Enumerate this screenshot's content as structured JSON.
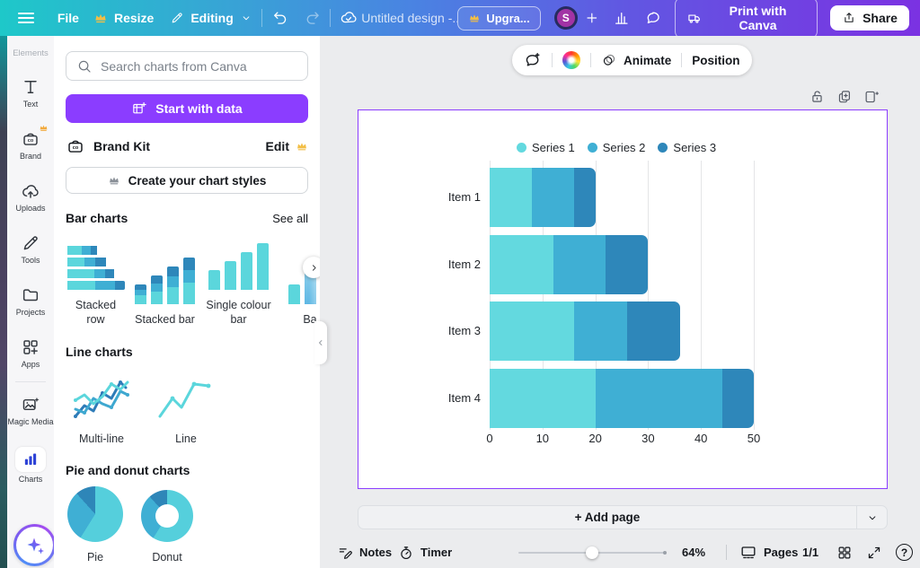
{
  "topbar": {
    "file": "File",
    "resize": "Resize",
    "editing": "Editing",
    "design_title": "Untitled design -...",
    "upgrade_label": "Upgra...",
    "avatar_initial": "S",
    "print_label": "Print with Canva",
    "share_label": "Share"
  },
  "rail": {
    "items": [
      {
        "id": "elements",
        "label": "Elements",
        "icon": "",
        "faded": true
      },
      {
        "id": "text",
        "label": "Text",
        "icon": "textT"
      },
      {
        "id": "brand",
        "label": "Brand",
        "icon": "brandCo",
        "crown": true
      },
      {
        "id": "uploads",
        "label": "Uploads",
        "icon": "cloudUp"
      },
      {
        "id": "tools",
        "label": "Tools",
        "icon": "pencil"
      },
      {
        "id": "projects",
        "label": "Projects",
        "icon": "folderIc"
      },
      {
        "id": "apps",
        "label": "Apps",
        "icon": "appsIc"
      },
      {
        "id": "divider"
      },
      {
        "id": "magic-media",
        "label": "Magic Media",
        "icon": "magicIc"
      },
      {
        "id": "charts",
        "label": "Charts",
        "icon": "chartBarsIc",
        "active": true
      }
    ]
  },
  "panel": {
    "search_placeholder": "Search charts from Canva",
    "start_with_data_label": "Start with data",
    "brand_kit_label": "Brand Kit",
    "edit_label": "Edit",
    "create_styles_label": "Create your chart styles",
    "sections": [
      {
        "title": "Bar charts",
        "see_all": "See all",
        "items": [
          {
            "label": "Stacked row",
            "type": "stacked-row"
          },
          {
            "label": "Stacked bar",
            "type": "stacked-bar"
          },
          {
            "label": "Single colour bar",
            "type": "single-colour-bar"
          },
          {
            "label": "Ba",
            "type": "partial-bar"
          }
        ]
      },
      {
        "title": "Line charts",
        "items": [
          {
            "label": "Multi-line",
            "type": "multi-line"
          },
          {
            "label": "Line",
            "type": "line"
          }
        ]
      },
      {
        "title": "Pie and donut charts",
        "items": [
          {
            "label": "Pie",
            "type": "pie"
          },
          {
            "label": "Donut",
            "type": "donut"
          }
        ]
      }
    ]
  },
  "context_toolbar": {
    "animate_label": "Animate",
    "position_label": "Position"
  },
  "chart_data": {
    "type": "bar",
    "orientation": "horizontal",
    "stacked": true,
    "categories": [
      "Item 1",
      "Item 2",
      "Item 3",
      "Item 4"
    ],
    "series": [
      {
        "name": "Series 1",
        "color": "#63D9DF",
        "values": [
          8,
          12,
          16,
          20
        ]
      },
      {
        "name": "Series 2",
        "color": "#3FAFD4",
        "values": [
          8,
          10,
          10,
          24
        ]
      },
      {
        "name": "Series 3",
        "color": "#2E87BA",
        "values": [
          4,
          8,
          10,
          6
        ]
      }
    ],
    "xlim": [
      0,
      50
    ],
    "xticks": [
      0,
      10,
      20,
      30,
      40,
      50
    ],
    "legend_position": "top",
    "grid": "vertical"
  },
  "canvas": {
    "add_page_label": "+ Add page"
  },
  "statusbar": {
    "notes_label": "Notes",
    "timer_label": "Timer",
    "zoom_value": "64%",
    "pages_label": "Pages",
    "page_indicator": "1/1",
    "help_glyph": "?"
  },
  "colors": {
    "accent_purple": "#8B3DFF",
    "selection_border": "#8B3DFF",
    "header_gradient_start": "#1EC8C9",
    "header_gradient_end": "#7B32E2",
    "thumb_series": [
      "#5BD6DC",
      "#3FAFD4",
      "#2E87BA"
    ]
  }
}
